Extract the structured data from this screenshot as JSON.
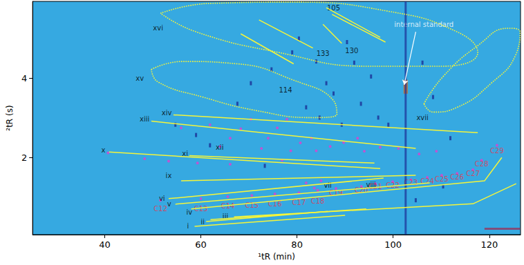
{
  "chart_data": {
    "type": "scatter",
    "xlabel": "¹tR (min)",
    "ylabel": "²tR (s)",
    "xlim": [
      25,
      126.5
    ],
    "ylim": [
      0.05,
      5.95
    ],
    "xticks": [
      40,
      60,
      80,
      100,
      120
    ],
    "yticks": [
      2,
      4
    ],
    "grid": false,
    "color": "#36a9e1",
    "series": [
      {
        "type": "line",
        "color": "#1c2f96",
        "line_style": "thick",
        "values": [
          [
            102.6,
            0.05
          ],
          [
            102.6,
            5.95
          ]
        ]
      },
      {
        "type": "line",
        "color": "#a02850",
        "line_style": "thick",
        "values": [
          [
            119.0,
            0.2
          ],
          [
            126.4,
            0.2
          ]
        ]
      },
      {
        "type": "scatter",
        "color": "#1c2f96",
        "marker": "streak",
        "values": [
          [
            61.9,
            2.31
          ],
          [
            67.6,
            3.36
          ],
          [
            70.4,
            3.88
          ],
          [
            74.7,
            4.23
          ],
          [
            79.0,
            4.66
          ],
          [
            80.4,
            5.01
          ],
          [
            84.0,
            4.43
          ],
          [
            86.1,
            3.88
          ],
          [
            87.6,
            3.62
          ],
          [
            90.4,
            4.92
          ],
          [
            91.9,
            4.4
          ],
          [
            93.3,
            3.36
          ],
          [
            95.4,
            4.05
          ],
          [
            96.9,
            3.01
          ],
          [
            99.0,
            2.83
          ],
          [
            106.1,
            4.4
          ],
          [
            108.3,
            3.53
          ],
          [
            111.9,
            2.49
          ],
          [
            54.7,
            2.83
          ],
          [
            59.0,
            2.57
          ],
          [
            73.3,
            1.79
          ],
          [
            81.9,
            3.27
          ],
          [
            84.7,
            3.01
          ],
          [
            89.3,
            2.83
          ],
          [
            104.7,
            0.92
          ],
          [
            110.4,
            1.27
          ]
        ]
      },
      {
        "type": "scatter",
        "color": "#d2691e",
        "marker": "spot",
        "values": [
          [
            102.6,
            3.79
          ]
        ]
      },
      {
        "type": "line",
        "color": "#f5f53a",
        "line_style": "solid",
        "values": [
          [
            58.7,
            0.26
          ],
          [
            90.0,
            0.54
          ]
        ]
      },
      {
        "type": "line",
        "color": "#f5f53a",
        "line_style": "solid",
        "values": [
          [
            61.1,
            0.38
          ],
          [
            86.4,
            0.64
          ]
        ]
      },
      {
        "type": "line",
        "color": "#f5f53a",
        "line_style": "solid",
        "values": [
          [
            62.0,
            0.43
          ],
          [
            94.4,
            0.7
          ]
        ]
      },
      {
        "type": "line",
        "color": "#f5f53a",
        "line_style": "solid",
        "values": [
          [
            66.9,
            0.5
          ],
          [
            116.6,
            0.83
          ],
          [
            125.6,
            1.34
          ]
        ]
      },
      {
        "type": "line",
        "color": "#f5f53a",
        "line_style": "solid",
        "values": [
          [
            58.0,
            0.7
          ],
          [
            119.0,
            1.41
          ],
          [
            122.6,
            2.0
          ]
        ]
      },
      {
        "type": "line",
        "color": "#f5f53a",
        "line_style": "solid",
        "values": [
          [
            54.7,
            0.82
          ],
          [
            107.6,
            1.36
          ]
        ]
      },
      {
        "type": "line",
        "color": "#f5f53a",
        "line_style": "solid",
        "values": [
          [
            53.3,
            0.96
          ],
          [
            98.0,
            1.48
          ]
        ]
      },
      {
        "type": "line",
        "color": "#f5f53a",
        "line_style": "solid",
        "values": [
          [
            55.9,
            1.41
          ],
          [
            104.7,
            1.55
          ]
        ]
      },
      {
        "type": "line",
        "color": "#f5f53a",
        "line_style": "solid",
        "values": [
          [
            40.9,
            2.14
          ],
          [
            97.3,
            1.72
          ]
        ]
      },
      {
        "type": "line",
        "color": "#f5f53a",
        "line_style": "solid",
        "values": [
          [
            57.6,
            2.05
          ],
          [
            96.1,
            1.86
          ]
        ]
      },
      {
        "type": "line",
        "color": "#f5f53a",
        "line_style": "solid",
        "values": [
          [
            49.7,
            2.92
          ],
          [
            104.7,
            2.23
          ]
        ]
      },
      {
        "type": "line",
        "color": "#f5f53a",
        "line_style": "solid",
        "values": [
          [
            54.3,
            3.08
          ],
          [
            117.6,
            2.63
          ]
        ]
      },
      {
        "type": "line",
        "color": "#f5f53a",
        "line_style": "solid",
        "values": [
          [
            86.1,
            5.79
          ],
          [
            97.3,
            5.04
          ]
        ]
      },
      {
        "type": "line",
        "color": "#f5f53a",
        "line_style": "solid",
        "values": [
          [
            87.3,
            5.62
          ],
          [
            98.4,
            4.92
          ]
        ]
      },
      {
        "type": "line",
        "color": "#f5f53a",
        "line_style": "solid",
        "values": [
          [
            85.4,
            5.37
          ],
          [
            89.3,
            4.89
          ]
        ]
      },
      {
        "type": "line",
        "color": "#f5f53a",
        "line_style": "solid",
        "values": [
          [
            72.1,
            5.48
          ],
          [
            83.3,
            4.77
          ]
        ]
      },
      {
        "type": "line",
        "color": "#f5f53a",
        "line_style": "solid",
        "values": [
          [
            68.3,
            5.13
          ],
          [
            79.3,
            4.37
          ]
        ]
      },
      {
        "type": "line",
        "color": "#f5f53a",
        "line_style": "dotted",
        "values": [
          [
            51.6,
            5.65
          ],
          [
            61.9,
            5.9
          ],
          [
            79.0,
            5.93
          ],
          [
            99.0,
            5.7
          ],
          [
            113.3,
            5.18
          ],
          [
            117.6,
            4.66
          ],
          [
            110.4,
            4.31
          ],
          [
            94.7,
            4.31
          ],
          [
            76.1,
            4.66
          ],
          [
            59.0,
            5.18
          ],
          [
            51.6,
            5.65
          ]
        ]
      },
      {
        "type": "line",
        "color": "#f5f53a",
        "line_style": "dotted",
        "values": [
          [
            49.7,
            4.23
          ],
          [
            56.1,
            4.43
          ],
          [
            67.6,
            4.37
          ],
          [
            79.0,
            3.97
          ],
          [
            87.6,
            3.44
          ],
          [
            88.3,
            3.1
          ],
          [
            83.3,
            3.01
          ],
          [
            71.9,
            3.18
          ],
          [
            60.4,
            3.53
          ],
          [
            51.1,
            3.91
          ],
          [
            49.7,
            4.23
          ]
        ]
      },
      {
        "type": "line",
        "color": "#f5f53a",
        "line_style": "dotted",
        "values": [
          [
            106.4,
            3.36
          ],
          [
            110.4,
            4.05
          ],
          [
            117.6,
            4.83
          ],
          [
            124.0,
            5.27
          ],
          [
            126.4,
            5.18
          ],
          [
            125.4,
            4.57
          ],
          [
            120.4,
            3.88
          ],
          [
            113.3,
            3.27
          ],
          [
            108.3,
            3.15
          ],
          [
            106.4,
            3.36
          ]
        ]
      },
      {
        "type": "scatter",
        "color": "#e040d0",
        "marker": "dot",
        "values": [
          [
            40.7,
            2.12
          ],
          [
            48.3,
            1.97
          ],
          [
            53.3,
            1.91
          ],
          [
            59.3,
            1.86
          ],
          [
            66.1,
            1.83
          ],
          [
            55.9,
            2.75
          ],
          [
            61.9,
            2.83
          ],
          [
            64.0,
            2.28
          ],
          [
            66.1,
            2.49
          ],
          [
            68.3,
            2.73
          ],
          [
            70.4,
            2.97
          ],
          [
            72.6,
            2.23
          ],
          [
            74.0,
            2.49
          ],
          [
            75.9,
            2.75
          ],
          [
            77.9,
            2.97
          ],
          [
            76.9,
            1.93
          ],
          [
            78.7,
            2.17
          ],
          [
            80.7,
            2.37
          ],
          [
            83.0,
            2.49
          ],
          [
            84.0,
            2.17
          ],
          [
            86.9,
            2.28
          ],
          [
            89.7,
            2.38
          ],
          [
            92.6,
            2.49
          ],
          [
            94.0,
            2.16
          ],
          [
            97.3,
            2.26
          ],
          [
            101.1,
            2.23
          ],
          [
            105.4,
            2.09
          ],
          [
            109.0,
            2.16
          ],
          [
            51.6,
            0.92
          ],
          [
            60.0,
            0.96
          ],
          [
            65.6,
            1.01
          ],
          [
            70.6,
            1.04
          ],
          [
            75.4,
            1.08
          ],
          [
            80.4,
            1.11
          ],
          [
            84.3,
            1.17
          ],
          [
            88.1,
            1.22
          ],
          [
            93.4,
            1.27
          ],
          [
            96.3,
            1.34
          ],
          [
            99.9,
            1.39
          ],
          [
            103.7,
            1.44
          ],
          [
            107.1,
            1.5
          ],
          [
            110.1,
            1.55
          ],
          [
            113.3,
            1.6
          ],
          [
            116.6,
            1.69
          ],
          [
            118.4,
            1.93
          ],
          [
            121.6,
            2.31
          ],
          [
            81.9,
            1.36
          ],
          [
            83.6,
            1.23
          ],
          [
            85.0,
            1.41
          ]
        ]
      },
      {
        "type": "line",
        "color": "#ffffff",
        "line_style": "solid",
        "marker": "arrow",
        "values": [
          [
            104.7,
            5.18
          ],
          [
            102.3,
            3.84
          ]
        ]
      }
    ],
    "annotations": [
      {
        "color": "#000000",
        "items": [
          {
            "text": "i",
            "x": 57.3,
            "y": 0.26
          },
          {
            "text": "ii",
            "x": 60.4,
            "y": 0.37
          },
          {
            "text": "iii",
            "x": 65.1,
            "y": 0.52
          },
          {
            "text": "iv",
            "x": 57.6,
            "y": 0.61
          },
          {
            "text": "v",
            "x": 53.4,
            "y": 0.82
          },
          {
            "text": "vi",
            "x": 51.9,
            "y": 0.96
          },
          {
            "text": "vii",
            "x": 86.4,
            "y": 1.3
          },
          {
            "text": "viii",
            "x": 95.4,
            "y": 1.32
          },
          {
            "text": "ix",
            "x": 53.3,
            "y": 1.55
          },
          {
            "text": "x",
            "x": 39.7,
            "y": 2.19
          },
          {
            "text": "xi",
            "x": 56.7,
            "y": 2.1
          },
          {
            "text": "xii",
            "x": 63.9,
            "y": 2.26
          },
          {
            "text": "xiii",
            "x": 48.3,
            "y": 2.97
          },
          {
            "text": "xiv",
            "x": 52.9,
            "y": 3.13
          },
          {
            "text": "xv",
            "x": 47.3,
            "y": 4.0
          },
          {
            "text": "xvi",
            "x": 51.1,
            "y": 5.27
          },
          {
            "text": "xvii",
            "x": 106.1,
            "y": 3.01
          },
          {
            "text": "105",
            "x": 87.6,
            "y": 5.79
          },
          {
            "text": "133",
            "x": 85.4,
            "y": 4.63
          },
          {
            "text": "130",
            "x": 91.4,
            "y": 4.71
          },
          {
            "text": "114",
            "x": 77.6,
            "y": 3.7
          }
        ]
      },
      {
        "color": "#e8344e",
        "items": [
          {
            "text": "C12",
            "x": 51.6,
            "y": 0.71
          },
          {
            "text": "C13",
            "x": 60.0,
            "y": 0.71
          },
          {
            "text": "C14",
            "x": 65.6,
            "y": 0.78
          },
          {
            "text": "C15",
            "x": 70.6,
            "y": 0.8
          },
          {
            "text": "C16",
            "x": 75.4,
            "y": 0.83
          },
          {
            "text": "C17",
            "x": 80.4,
            "y": 0.87
          },
          {
            "text": "C18",
            "x": 84.3,
            "y": 0.9
          },
          {
            "text": "C19",
            "x": 88.1,
            "y": 1.11
          },
          {
            "text": "C20",
            "x": 93.4,
            "y": 1.18
          },
          {
            "text": "C21",
            "x": 96.3,
            "y": 1.27
          },
          {
            "text": "C22",
            "x": 99.9,
            "y": 1.3
          },
          {
            "text": "C23",
            "x": 103.7,
            "y": 1.36
          },
          {
            "text": "C24",
            "x": 107.1,
            "y": 1.41
          },
          {
            "text": "C25",
            "x": 110.1,
            "y": 1.46
          },
          {
            "text": "C26",
            "x": 113.3,
            "y": 1.5
          },
          {
            "text": "C27",
            "x": 116.6,
            "y": 1.6
          },
          {
            "text": "C28",
            "x": 118.4,
            "y": 1.84
          },
          {
            "text": "C29",
            "x": 121.6,
            "y": 2.17
          }
        ]
      },
      {
        "color": "#ffffff",
        "items": [
          {
            "text": "internal standard",
            "x": 106.4,
            "y": 5.36
          }
        ]
      }
    ]
  }
}
